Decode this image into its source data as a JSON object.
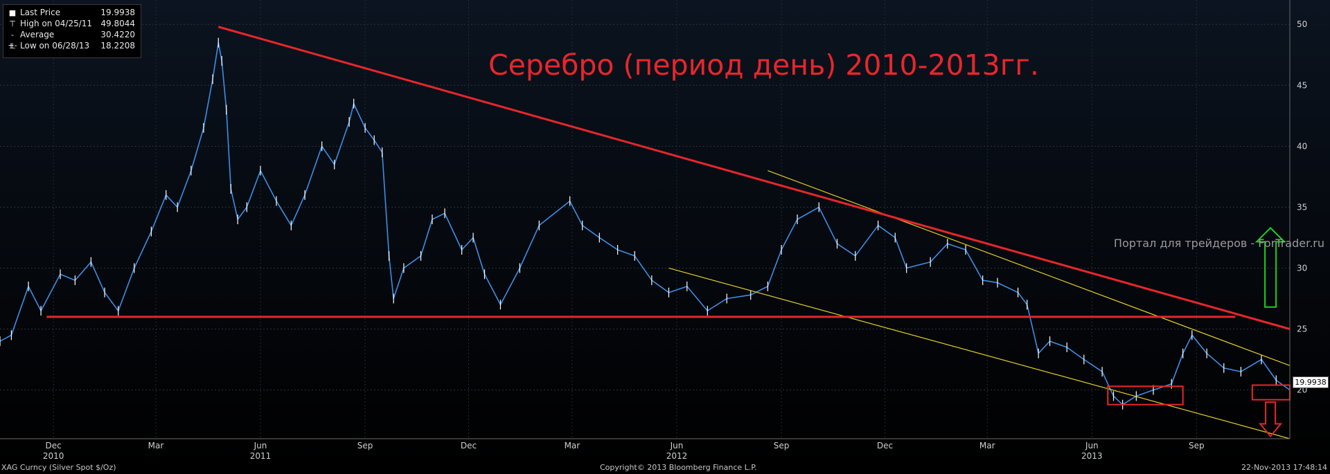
{
  "legend": {
    "items": [
      {
        "icon": "square-icon",
        "glyph": "■",
        "label": "Last Price",
        "value": "19.9938"
      },
      {
        "icon": "high-marker-icon",
        "glyph": "⊤",
        "label": "High on 04/25/11",
        "value": "49.8044"
      },
      {
        "icon": "average-line-icon",
        "glyph": "-+-",
        "label": "Average",
        "value": "30.4220"
      },
      {
        "icon": "low-marker-icon",
        "glyph": "⊥",
        "label": "Low on 06/28/13",
        "value": "18.2208"
      }
    ]
  },
  "title_overlay": "Серебро (период день) 2010-2013гг.",
  "watermark": "Портал для трейдеров - ForTrader.ru",
  "last_price_tag": "19.9938",
  "footer": {
    "left": "XAG Curncy (Silver Spot $/Oz)",
    "center": "Copyright© 2013 Bloomberg Finance L.P.",
    "right": "22-Nov-2013 17:48:14"
  },
  "colors": {
    "price_line": "#3b8fe6",
    "candle": "#ffffff",
    "trend_red": "#e8262b",
    "channel_yellow": "#e3d021",
    "arrow_up": "#19d219",
    "arrow_down": "#e8262b"
  },
  "chart_data": {
    "type": "line",
    "title": "",
    "xlabel": "",
    "ylabel": "",
    "ylim": [
      16,
      52
    ],
    "y_ticks": [
      20,
      25,
      30,
      35,
      40,
      45,
      50
    ],
    "grid": true,
    "x_ticks": [
      {
        "date": "2010-12-01",
        "label": "Dec",
        "year": "2010"
      },
      {
        "date": "2011-03-01",
        "label": "Mar",
        "year": ""
      },
      {
        "date": "2011-06-01",
        "label": "Jun",
        "year": "2011"
      },
      {
        "date": "2011-09-01",
        "label": "Sep",
        "year": ""
      },
      {
        "date": "2011-12-01",
        "label": "Dec",
        "year": ""
      },
      {
        "date": "2012-03-01",
        "label": "Mar",
        "year": ""
      },
      {
        "date": "2012-06-01",
        "label": "Jun",
        "year": "2012"
      },
      {
        "date": "2012-09-01",
        "label": "Sep",
        "year": ""
      },
      {
        "date": "2012-12-01",
        "label": "Dec",
        "year": ""
      },
      {
        "date": "2013-03-01",
        "label": "Mar",
        "year": ""
      },
      {
        "date": "2013-06-01",
        "label": "Jun",
        "year": "2013"
      },
      {
        "date": "2013-09-01",
        "label": "Sep",
        "year": ""
      }
    ],
    "x_range": [
      "2010-10-15",
      "2013-11-22"
    ],
    "series": [
      {
        "values": [
          {
            "x": "2010-10-15",
            "y": 24.0
          },
          {
            "x": "2010-10-25",
            "y": 24.5
          },
          {
            "x": "2010-11-09",
            "y": 28.5
          },
          {
            "x": "2010-11-20",
            "y": 26.5
          },
          {
            "x": "2010-12-07",
            "y": 29.5
          },
          {
            "x": "2010-12-20",
            "y": 29.0
          },
          {
            "x": "2011-01-03",
            "y": 30.5
          },
          {
            "x": "2011-01-15",
            "y": 28.0
          },
          {
            "x": "2011-01-27",
            "y": 26.5
          },
          {
            "x": "2011-02-10",
            "y": 30.0
          },
          {
            "x": "2011-02-25",
            "y": 33.0
          },
          {
            "x": "2011-03-10",
            "y": 36.0
          },
          {
            "x": "2011-03-20",
            "y": 35.0
          },
          {
            "x": "2011-04-01",
            "y": 38.0
          },
          {
            "x": "2011-04-12",
            "y": 41.5
          },
          {
            "x": "2011-04-20",
            "y": 45.5
          },
          {
            "x": "2011-04-25",
            "y": 48.5
          },
          {
            "x": "2011-04-28",
            "y": 47.0
          },
          {
            "x": "2011-05-02",
            "y": 43.0
          },
          {
            "x": "2011-05-06",
            "y": 36.5
          },
          {
            "x": "2011-05-12",
            "y": 34.0
          },
          {
            "x": "2011-05-20",
            "y": 35.0
          },
          {
            "x": "2011-06-01",
            "y": 38.0
          },
          {
            "x": "2011-06-15",
            "y": 35.5
          },
          {
            "x": "2011-06-28",
            "y": 33.5
          },
          {
            "x": "2011-07-10",
            "y": 36.0
          },
          {
            "x": "2011-07-25",
            "y": 40.0
          },
          {
            "x": "2011-08-05",
            "y": 38.5
          },
          {
            "x": "2011-08-18",
            "y": 42.0
          },
          {
            "x": "2011-08-22",
            "y": 43.5
          },
          {
            "x": "2011-09-01",
            "y": 41.5
          },
          {
            "x": "2011-09-09",
            "y": 40.5
          },
          {
            "x": "2011-09-16",
            "y": 39.5
          },
          {
            "x": "2011-09-22",
            "y": 31.0
          },
          {
            "x": "2011-09-26",
            "y": 27.5
          },
          {
            "x": "2011-10-05",
            "y": 30.0
          },
          {
            "x": "2011-10-20",
            "y": 31.0
          },
          {
            "x": "2011-10-30",
            "y": 34.0
          },
          {
            "x": "2011-11-10",
            "y": 34.5
          },
          {
            "x": "2011-11-25",
            "y": 31.5
          },
          {
            "x": "2011-12-05",
            "y": 32.5
          },
          {
            "x": "2011-12-15",
            "y": 29.5
          },
          {
            "x": "2011-12-29",
            "y": 27.0
          },
          {
            "x": "2012-01-15",
            "y": 30.0
          },
          {
            "x": "2012-02-01",
            "y": 33.5
          },
          {
            "x": "2012-02-28",
            "y": 35.5
          },
          {
            "x": "2012-03-10",
            "y": 33.5
          },
          {
            "x": "2012-03-25",
            "y": 32.5
          },
          {
            "x": "2012-04-10",
            "y": 31.5
          },
          {
            "x": "2012-04-25",
            "y": 31.0
          },
          {
            "x": "2012-05-10",
            "y": 29.0
          },
          {
            "x": "2012-05-25",
            "y": 28.0
          },
          {
            "x": "2012-06-10",
            "y": 28.5
          },
          {
            "x": "2012-06-28",
            "y": 26.5
          },
          {
            "x": "2012-07-15",
            "y": 27.5
          },
          {
            "x": "2012-08-05",
            "y": 27.8
          },
          {
            "x": "2012-08-20",
            "y": 28.5
          },
          {
            "x": "2012-09-01",
            "y": 31.5
          },
          {
            "x": "2012-09-15",
            "y": 34.0
          },
          {
            "x": "2012-10-04",
            "y": 35.0
          },
          {
            "x": "2012-10-20",
            "y": 32.0
          },
          {
            "x": "2012-11-05",
            "y": 31.0
          },
          {
            "x": "2012-11-25",
            "y": 33.5
          },
          {
            "x": "2012-12-10",
            "y": 32.5
          },
          {
            "x": "2012-12-20",
            "y": 30.0
          },
          {
            "x": "2013-01-10",
            "y": 30.5
          },
          {
            "x": "2013-01-25",
            "y": 32.0
          },
          {
            "x": "2013-02-10",
            "y": 31.5
          },
          {
            "x": "2013-02-25",
            "y": 29.0
          },
          {
            "x": "2013-03-10",
            "y": 28.8
          },
          {
            "x": "2013-03-28",
            "y": 28.0
          },
          {
            "x": "2013-04-05",
            "y": 27.0
          },
          {
            "x": "2013-04-15",
            "y": 23.0
          },
          {
            "x": "2013-04-25",
            "y": 24.0
          },
          {
            "x": "2013-05-10",
            "y": 23.5
          },
          {
            "x": "2013-05-25",
            "y": 22.5
          },
          {
            "x": "2013-06-10",
            "y": 21.5
          },
          {
            "x": "2013-06-20",
            "y": 19.5
          },
          {
            "x": "2013-06-28",
            "y": 18.8
          },
          {
            "x": "2013-07-10",
            "y": 19.5
          },
          {
            "x": "2013-07-25",
            "y": 20.0
          },
          {
            "x": "2013-08-10",
            "y": 20.5
          },
          {
            "x": "2013-08-20",
            "y": 23.0
          },
          {
            "x": "2013-08-28",
            "y": 24.5
          },
          {
            "x": "2013-09-10",
            "y": 23.0
          },
          {
            "x": "2013-09-25",
            "y": 21.8
          },
          {
            "x": "2013-10-10",
            "y": 21.5
          },
          {
            "x": "2013-10-28",
            "y": 22.5
          },
          {
            "x": "2013-11-10",
            "y": 20.8
          },
          {
            "x": "2013-11-22",
            "y": 20.0
          }
        ]
      }
    ],
    "annotations": {
      "resistance_line": {
        "from": {
          "x": "2011-04-25",
          "y": 49.8
        },
        "to": {
          "x": "2013-11-22",
          "y": 25.0
        }
      },
      "support_line": {
        "from": {
          "x": "2010-11-25",
          "y": 26.0
        },
        "to": {
          "x": "2013-10-05",
          "y": 26.0
        }
      },
      "channel_upper": {
        "from": {
          "x": "2012-08-20",
          "y": 38.0
        },
        "to": {
          "x": "2013-11-22",
          "y": 22.0
        }
      },
      "channel_lower": {
        "from": {
          "x": "2012-05-25",
          "y": 30.0
        },
        "to": {
          "x": "2013-11-22",
          "y": 16.0
        }
      },
      "box_low_zone": {
        "from": {
          "x": "2013-06-15",
          "y": 18.8
        },
        "to": {
          "x": "2013-08-20",
          "y": 20.3
        }
      },
      "box_last": {
        "from": {
          "x": "2013-10-20",
          "y": 19.2
        },
        "to": {
          "x": "2013-11-22",
          "y": 20.4
        }
      },
      "arrow_up": {
        "x": "2013-11-05",
        "from_y": 26.8,
        "to_y": 33.3
      },
      "arrow_down": {
        "x": "2013-11-05",
        "from_y": 19.0,
        "to_y": 16.2
      }
    }
  }
}
